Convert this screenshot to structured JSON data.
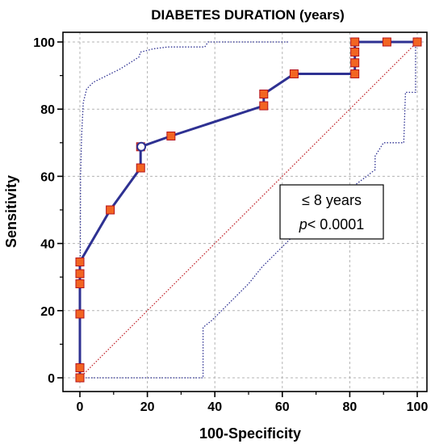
{
  "chart_data": {
    "type": "line",
    "title": "DIABETES DURATION (years)",
    "xlabel": "100-Specificity",
    "ylabel": "Sensitivity",
    "xlim": [
      0,
      100
    ],
    "ylim": [
      0,
      100
    ],
    "x_ticks": [
      0,
      20,
      40,
      60,
      80,
      100
    ],
    "y_ticks": [
      0,
      20,
      40,
      60,
      80,
      100
    ],
    "grid": true,
    "series": [
      {
        "role": "roc-curve",
        "color": "#2e3192",
        "line_style": "solid",
        "x": [
          0,
          0,
          0,
          0,
          0,
          0,
          0,
          9,
          18,
          18,
          27,
          54.5,
          54.5,
          63.5,
          81.5,
          81.5,
          81.5,
          81.5,
          91,
          100
        ],
        "y": [
          0,
          3,
          19,
          28,
          31,
          34.5,
          34.5,
          50,
          62.5,
          68.8,
          72,
          81,
          84.5,
          90.5,
          90.5,
          93.8,
          97,
          100,
          100,
          100
        ]
      },
      {
        "role": "upper-confidence-bound",
        "color": "#2e3192",
        "line_style": "dotted",
        "x": [
          0,
          0.2,
          0.5,
          1,
          2,
          4,
          8,
          12,
          17.5,
          18,
          22,
          26,
          37,
          38,
          62
        ],
        "y": [
          0,
          60,
          72,
          82,
          86,
          88,
          90,
          92,
          95.5,
          97,
          98,
          98.5,
          98.5,
          100,
          100
        ]
      },
      {
        "role": "lower-confidence-bound",
        "color": "#2e3192",
        "line_style": "dotted",
        "x": [
          0,
          36.5,
          36.5,
          39,
          44,
          50,
          54,
          58,
          63,
          68,
          72,
          76,
          81,
          85,
          87.5,
          87.5,
          90,
          93,
          96,
          96.5,
          99.5,
          99.5,
          100
        ],
        "y": [
          0,
          0,
          15,
          17,
          22,
          28,
          33,
          37,
          42,
          46,
          50,
          54,
          57,
          60,
          62,
          66,
          70,
          70,
          70,
          85,
          85,
          100,
          100
        ]
      },
      {
        "role": "reference-diagonal",
        "color": "#c1272d",
        "line_style": "dotted",
        "x": [
          0,
          100
        ],
        "y": [
          0,
          100
        ]
      }
    ],
    "point_style": {
      "fill": "#f26522",
      "stroke": "#b5121b"
    },
    "optimal_point": {
      "x": 18.2,
      "y": 68.8
    },
    "annotation": {
      "line1": "≤ 8 years",
      "line2_italic": "p",
      "line2_rest": "< 0.0001"
    }
  }
}
